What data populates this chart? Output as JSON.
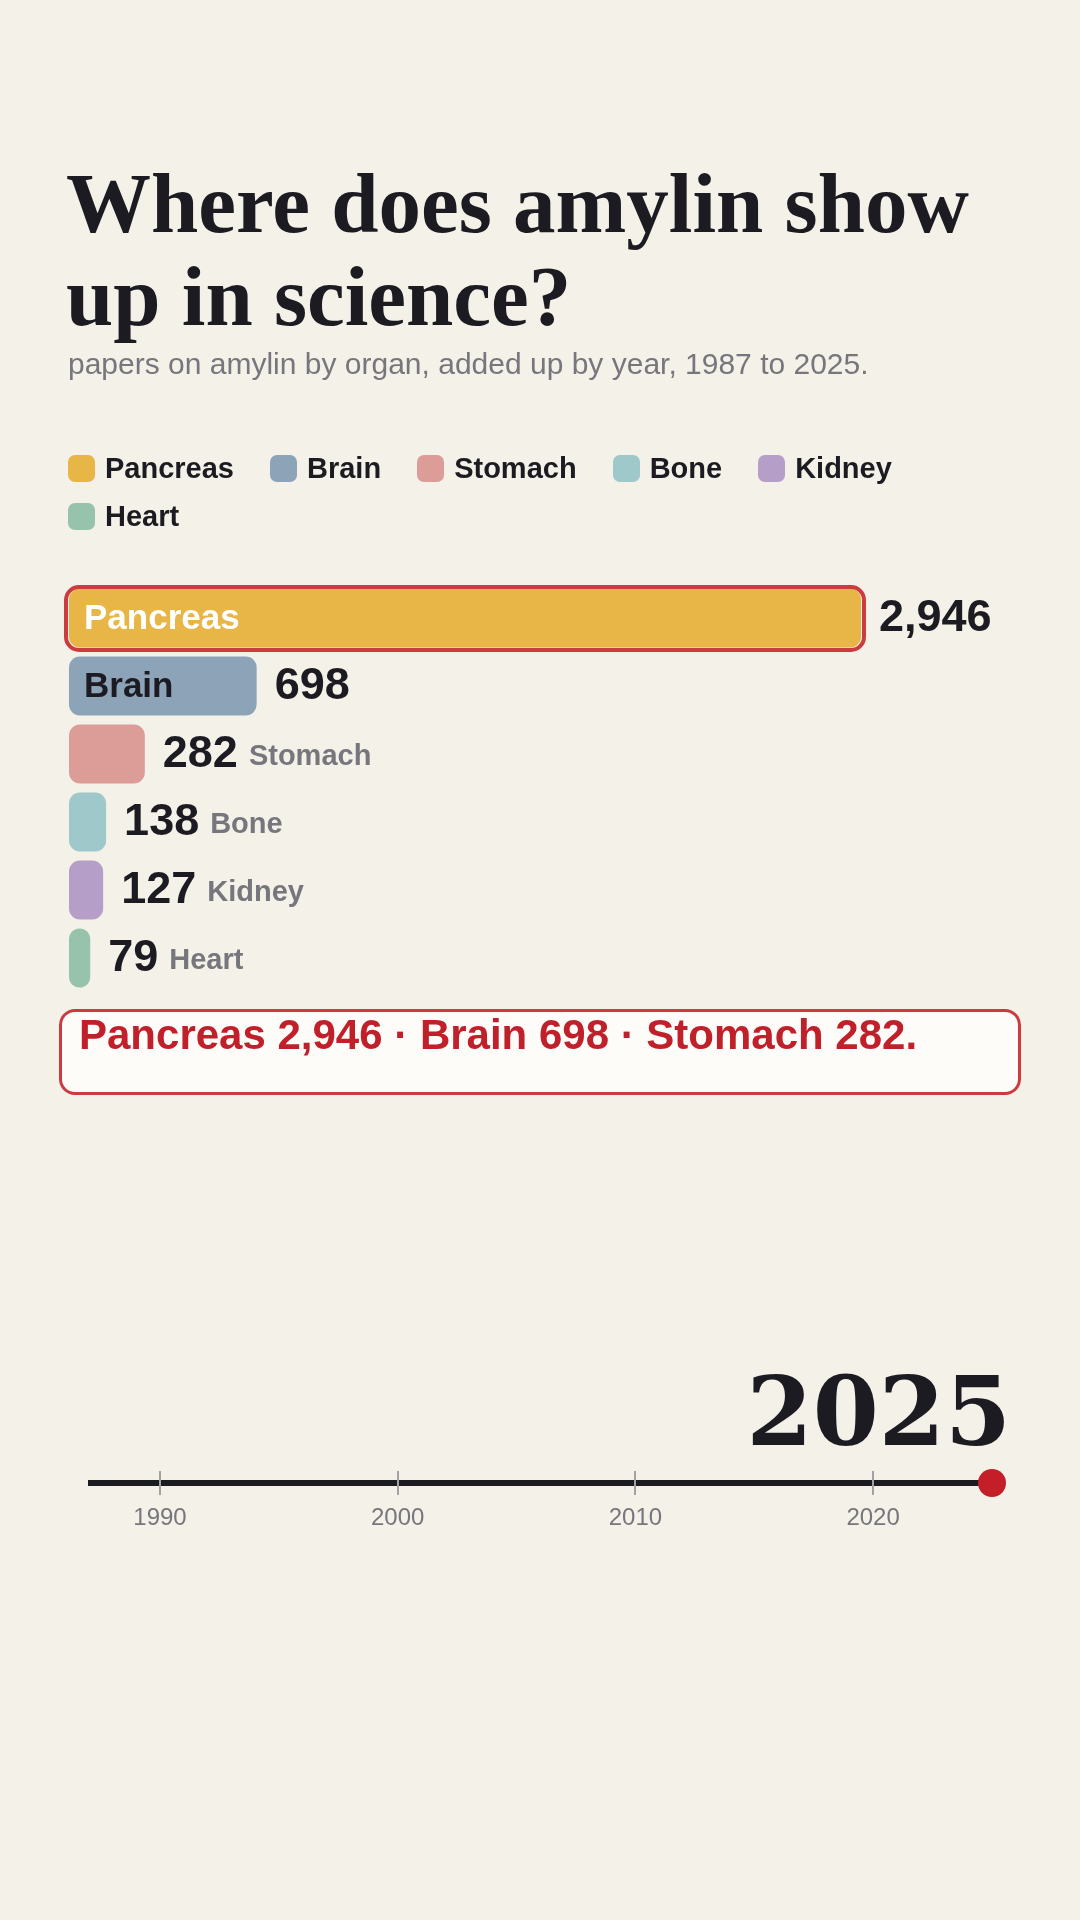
{
  "chart_data": {
    "type": "bar",
    "orientation": "horizontal",
    "title": "Where does amylin show up in science?",
    "subtitle": "papers on amylin by organ, added up by year, 1987 to 2025.",
    "legend": "top left",
    "categories": [
      "Pancreas",
      "Brain",
      "Stomach",
      "Bone",
      "Kidney",
      "Heart"
    ],
    "series": [
      {
        "name": "Pancreas",
        "color": "#e8b547",
        "values": [
          2946,
          null,
          null,
          null,
          null,
          null
        ],
        "value_labels": [
          "2,946",
          null,
          null,
          null,
          null,
          null
        ]
      },
      {
        "name": "Brain",
        "color": "#8ca3b8",
        "values": [
          null,
          698,
          null,
          null,
          null,
          null
        ],
        "value_labels": [
          null,
          "698",
          null,
          null,
          null,
          null
        ]
      },
      {
        "name": "Stomach",
        "color": "#dc9c98",
        "values": [
          null,
          null,
          282,
          null,
          null,
          null
        ],
        "value_labels": [
          null,
          null,
          "282",
          null,
          null,
          null
        ]
      },
      {
        "name": "Bone",
        "color": "#9fc8cb",
        "values": [
          null,
          null,
          null,
          138,
          null,
          null
        ],
        "value_labels": [
          null,
          null,
          null,
          "138",
          null,
          null
        ]
      },
      {
        "name": "Kidney",
        "color": "#b59fc8",
        "values": [
          null,
          null,
          null,
          null,
          127,
          null
        ],
        "value_labels": [
          null,
          null,
          null,
          null,
          "127",
          null
        ]
      },
      {
        "name": "Heart",
        "color": "#97c3ac",
        "values": [
          null,
          null,
          null,
          null,
          null,
          79
        ],
        "value_labels": [
          null,
          null,
          null,
          null,
          null,
          "79"
        ]
      }
    ],
    "annotations": [
      "Pancreas 2,946 · Brain 698 · Stomach 282.",
      "2025",
      "1990",
      "2000",
      "2010",
      "2020"
    ]
  }
}
